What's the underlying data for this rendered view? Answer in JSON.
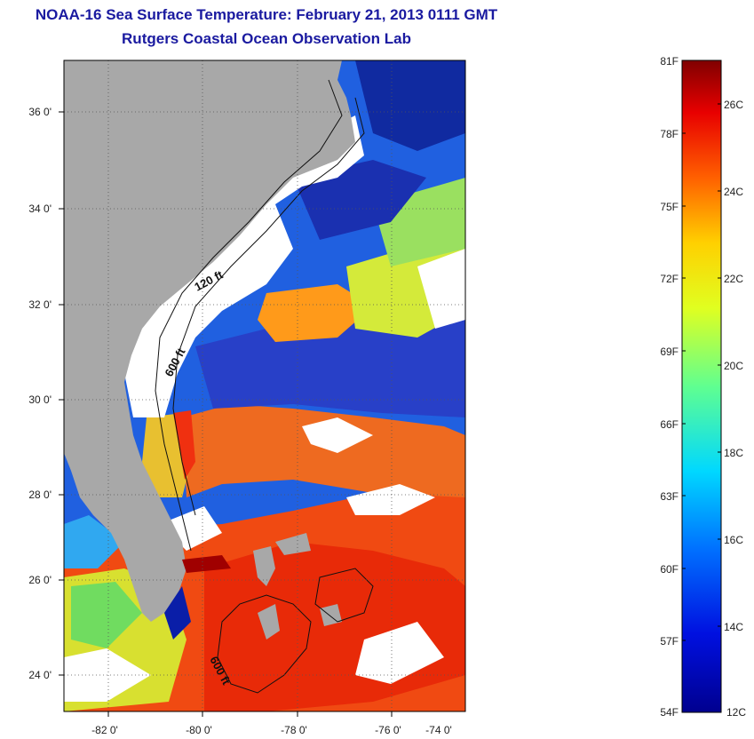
{
  "header": {
    "title": "NOAA-16 Sea Surface Temperature:  February 21, 2013 0111 GMT",
    "subtitle": "Rutgers Coastal Ocean Observation Lab"
  },
  "map": {
    "lon_labels": [
      "-82 0'",
      "-80 0'",
      "-78 0'",
      "-76 0'",
      "-74 0'"
    ],
    "lat_labels": [
      "36 0'",
      "34 0'",
      "32 0'",
      "30 0'",
      "28 0'",
      "26 0'",
      "24 0'"
    ],
    "depth_labels": [
      "120 ft",
      "600 ft",
      "600 ft"
    ],
    "colors": {
      "land": "#a8a8a8",
      "cloud": "#ffffff",
      "cold": "#0a1ea8",
      "cool": "#1e78ff",
      "mild": "#26e0c8",
      "green": "#8ee65a",
      "yellow": "#f0f020",
      "orange": "#ff8c10",
      "red": "#f0320a",
      "darkred": "#a00000"
    }
  },
  "colorbar": {
    "fahrenheit_labels": [
      "81F",
      "78F",
      "75F",
      "72F",
      "69F",
      "66F",
      "63F",
      "60F",
      "57F",
      "54F"
    ],
    "celsius_labels": [
      "26C",
      "24C",
      "22C",
      "20C",
      "18C",
      "16C",
      "14C",
      "12C"
    ]
  }
}
